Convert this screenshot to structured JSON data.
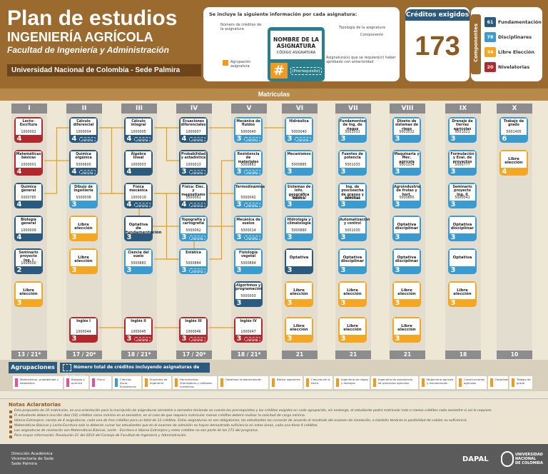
{
  "header": {
    "title": "Plan de estudios",
    "career": "INGENIERÍA AGRÍCOLA",
    "faculty": "Facultad de Ingeniería y Administración",
    "university": "Universidad Nacional de Colombia - Sede Palmira"
  },
  "legend": {
    "title": "Se incluye la siguiente información por cada asignatura:",
    "left_label_1": "Número de créditos de la asignatura",
    "card_name": "NOMBRE DE LA ASIGNATURA",
    "card_code": "CÓDIGO ASIGNATURA",
    "hash": "#",
    "prereq": "(Prerrequisito)",
    "right_label_1": "Tipología de la asignatura",
    "right_label_2": "Componente",
    "right_label_3": "Asignatura(s) que se requiere(n) haber aprobado con anterioridad",
    "agrupacion_label": "Agrupación asignatura"
  },
  "credits": {
    "title": "Créditos exigidos",
    "total": "173"
  },
  "components": {
    "label": "Componentes",
    "items": [
      {
        "num": "61",
        "label": "Fundamentación",
        "color": "#2a5a7e"
      },
      {
        "num": "78",
        "label": "Disciplinares",
        "color": "#3a9bd0"
      },
      {
        "num": "34",
        "label": "Libre Elección",
        "color": "#f5a623"
      },
      {
        "num": "20",
        "label": "Nivelatorias",
        "color": "#b3282d"
      }
    ]
  },
  "matriculas_title": "Matrículas",
  "semesters": [
    {
      "roman": "I",
      "credits": "13 / 21*"
    },
    {
      "roman": "II",
      "credits": "17 / 20*"
    },
    {
      "roman": "III",
      "credits": "18 / 21*"
    },
    {
      "roman": "IV",
      "credits": "17 / 20*"
    },
    {
      "roman": "V",
      "credits": "18 / 21*"
    },
    {
      "roman": "VI",
      "credits": "21"
    },
    {
      "roman": "VII",
      "credits": "21"
    },
    {
      "roman": "VIII",
      "credits": "21"
    },
    {
      "roman": "IX",
      "credits": "18"
    },
    {
      "roman": "X",
      "credits": "10"
    }
  ],
  "courses": [
    {
      "sem": 0,
      "row": 0,
      "name": "Lecto-Escritura",
      "code": "1000002",
      "cr": "4",
      "color": "#b3282d",
      "prereq": ""
    },
    {
      "sem": 0,
      "row": 1,
      "name": "Matemáticas básicas",
      "code": "1000001",
      "cr": "4",
      "color": "#b3282d",
      "prereq": ""
    },
    {
      "sem": 0,
      "row": 2,
      "name": "Química general",
      "code": "5000785",
      "cr": "4",
      "color": "#2a5a7e",
      "prereq": ""
    },
    {
      "sem": 0,
      "row": 3,
      "name": "Biología general",
      "code": "1000009",
      "cr": "4",
      "color": "#2a5a7e",
      "prereq": ""
    },
    {
      "sem": 0,
      "row": 4,
      "name": "Seminario proyecto Ing. I",
      "code": "1000000",
      "cr": "2",
      "color": "#2a5a7e",
      "prereq": ""
    },
    {
      "sem": 0,
      "row": 5,
      "name": "Libre elección",
      "code": "",
      "cr": "3",
      "color": "#f5a623",
      "prereq": "",
      "elec": true
    },
    {
      "sem": 1,
      "row": 0,
      "name": "Cálculo diferencial",
      "code": "1000004",
      "cr": "4",
      "color": "#2a5a7e",
      "prereq": "1000001"
    },
    {
      "sem": 1,
      "row": 1,
      "name": "Química orgánica",
      "code": "5000600",
      "cr": "4",
      "color": "#2a5a7e",
      "prereq": "5000785"
    },
    {
      "sem": 1,
      "row": 2,
      "name": "Dibujo de ingeniería",
      "code": "5000038",
      "cr": "3",
      "color": "#3a9bd0",
      "prereq": ""
    },
    {
      "sem": 1,
      "row": 3,
      "name": "Libre elección",
      "code": "",
      "cr": "3",
      "color": "#f5a623",
      "prereq": "",
      "elec": true
    },
    {
      "sem": 1,
      "row": 4,
      "name": "Libre elección",
      "code": "",
      "cr": "3",
      "color": "#f5a623",
      "prereq": "",
      "elec": true
    },
    {
      "sem": 1,
      "row": 6,
      "name": "Inglés I",
      "code": "1000044",
      "cr": "3",
      "color": "#b3282d",
      "prereq": ""
    },
    {
      "sem": 2,
      "row": 0,
      "name": "Cálculo integral",
      "code": "1000005",
      "cr": "4",
      "color": "#2a5a7e",
      "prereq": "1000004"
    },
    {
      "sem": 2,
      "row": 1,
      "name": "Álgebra lineal",
      "code": "1000003",
      "cr": "4",
      "color": "#2a5a7e",
      "prereq": ""
    },
    {
      "sem": 2,
      "row": 2,
      "name": "Física mecánica",
      "code": "1000019",
      "cr": "4",
      "color": "#2a5a7e",
      "prereq": "1000004"
    },
    {
      "sem": 2,
      "row": 3,
      "name": "Optativa de fundamentación",
      "code": "",
      "cr": "3",
      "color": "#2a5a7e",
      "prereq": "",
      "elec": true
    },
    {
      "sem": 2,
      "row": 4,
      "name": "Ciencia del suelo",
      "code": "5000883",
      "cr": "3",
      "color": "#3a9bd0",
      "prereq": ""
    },
    {
      "sem": 2,
      "row": 6,
      "name": "Inglés II",
      "code": "1000045",
      "cr": "3",
      "color": "#b3282d",
      "prereq": "1000044"
    },
    {
      "sem": 3,
      "row": 0,
      "name": "Ecuaciones diferenciales",
      "code": "1000007",
      "cr": "4",
      "color": "#2a5a7e",
      "prereq": "1000005"
    },
    {
      "sem": 3,
      "row": 1,
      "name": "Probabilidad y estadística",
      "code": "1000013",
      "cr": "3",
      "color": "#2a5a7e",
      "prereq": "1000005"
    },
    {
      "sem": 3,
      "row": 2,
      "name": "Física: Elec. y magnetismo",
      "code": "5000061",
      "cr": "4",
      "color": "#2a5a7e",
      "prereq": "1000019"
    },
    {
      "sem": 3,
      "row": 3,
      "name": "Topografía y cartografía",
      "code": "5000062",
      "cr": "3",
      "color": "#3a9bd0",
      "prereq": "5000038"
    },
    {
      "sem": 3,
      "row": 4,
      "name": "Estática",
      "code": "5000884",
      "cr": "3",
      "color": "#3a9bd0",
      "prereq": "1000019"
    },
    {
      "sem": 3,
      "row": 6,
      "name": "Inglés III",
      "code": "1000046",
      "cr": "3",
      "color": "#b3282d",
      "prereq": "1000045"
    },
    {
      "sem": 4,
      "row": 0,
      "name": "Mecánica de fluidos",
      "code": "5000040",
      "cr": "3",
      "color": "#3a9bd0",
      "prereq": "1000007"
    },
    {
      "sem": 4,
      "row": 1,
      "name": "Resistencia de materiales",
      "code": "5000881",
      "cr": "3",
      "color": "#3a9bd0",
      "prereq": "5000884"
    },
    {
      "sem": 4,
      "row": 2,
      "name": "Termodinámica",
      "code": "5000042",
      "cr": "3",
      "color": "#3a9bd0",
      "prereq": "5000061"
    },
    {
      "sem": 4,
      "row": 3,
      "name": "Mecánica de suelos",
      "code": "5000014",
      "cr": "3",
      "color": "#3a9bd0",
      "prereq": "5000883"
    },
    {
      "sem": 4,
      "row": 4,
      "name": "Fisiología vegetal",
      "code": "5000884",
      "cr": "3",
      "color": "#3a9bd0",
      "prereq": ""
    },
    {
      "sem": 4,
      "row": 5,
      "name": "Algoritmos y programación",
      "code": "5000003",
      "cr": "3",
      "color": "#2a5a7e",
      "prereq": ""
    },
    {
      "sem": 4,
      "row": 6,
      "name": "Inglés IV",
      "code": "1000047",
      "cr": "3",
      "color": "#b3282d",
      "prereq": "1000046"
    },
    {
      "sem": 5,
      "row": 0,
      "name": "Hidráulica",
      "code": "5000040",
      "cr": "3",
      "color": "#3a9bd0",
      "prereq": "5000040"
    },
    {
      "sem": 5,
      "row": 1,
      "name": "Mecanismos",
      "code": "5000885",
      "cr": "3",
      "color": "#3a9bd0",
      "prereq": ""
    },
    {
      "sem": 5,
      "row": 2,
      "name": "Sistemas de info. geográfica básica",
      "code": "5000033",
      "cr": "3",
      "color": "#3a9bd0",
      "prereq": ""
    },
    {
      "sem": 5,
      "row": 3,
      "name": "Hidrología y climatología",
      "code": "5000880",
      "cr": "3",
      "color": "#3a9bd0",
      "prereq": ""
    },
    {
      "sem": 5,
      "row": 4,
      "name": "Optativa",
      "code": "",
      "cr": "3",
      "color": "#2a5a7e",
      "prereq": "",
      "elec": true
    },
    {
      "sem": 5,
      "row": 5,
      "name": "Libre elección",
      "code": "",
      "cr": "3",
      "color": "#f5a623",
      "prereq": "",
      "elec": true
    },
    {
      "sem": 5,
      "row": 6,
      "name": "Libre elección",
      "code": "",
      "cr": "3",
      "color": "#f5a623",
      "prereq": "",
      "elec": true
    },
    {
      "sem": 6,
      "row": 0,
      "name": "Fundamentos de Ing. de riegos",
      "code": "5001031",
      "cr": "3",
      "color": "#3a9bd0",
      "prereq": ""
    },
    {
      "sem": 6,
      "row": 1,
      "name": "Fuentes de potencia",
      "code": "5001033",
      "cr": "3",
      "color": "#3a9bd0",
      "prereq": ""
    },
    {
      "sem": 6,
      "row": 2,
      "name": "Ing. de poscosecha de granos y semillas",
      "code": "5000013",
      "cr": "3",
      "color": "#3a9bd0",
      "prereq": ""
    },
    {
      "sem": 6,
      "row": 3,
      "name": "Automatización y control",
      "code": "5001030",
      "cr": "3",
      "color": "#3a9bd0",
      "prereq": ""
    },
    {
      "sem": 6,
      "row": 4,
      "name": "Optativa disciplinar",
      "code": "",
      "cr": "3",
      "color": "#3a9bd0",
      "prereq": "",
      "elec": true
    },
    {
      "sem": 6,
      "row": 5,
      "name": "Libre elección",
      "code": "",
      "cr": "3",
      "color": "#f5a623",
      "prereq": "",
      "elec": true
    },
    {
      "sem": 6,
      "row": 6,
      "name": "Libre elección",
      "code": "",
      "cr": "3",
      "color": "#f5a623",
      "prereq": "",
      "elec": true
    },
    {
      "sem": 7,
      "row": 0,
      "name": "Diseño de sistemas de riego",
      "code": "5001032",
      "cr": "3",
      "color": "#3a9bd0",
      "prereq": ""
    },
    {
      "sem": 7,
      "row": 1,
      "name": "Maquinaria y Mec. agrícola",
      "code": "5001034",
      "cr": "3",
      "color": "#3a9bd0",
      "prereq": ""
    },
    {
      "sem": 7,
      "row": 2,
      "name": "Agroindustria de frutas y hort.",
      "code": "5000865",
      "cr": "3",
      "color": "#3a9bd0",
      "prereq": ""
    },
    {
      "sem": 7,
      "row": 3,
      "name": "Optativa disciplinar",
      "code": "",
      "cr": "3",
      "color": "#3a9bd0",
      "prereq": "",
      "elec": true
    },
    {
      "sem": 7,
      "row": 4,
      "name": "Optativa disciplinar",
      "code": "",
      "cr": "3",
      "color": "#3a9bd0",
      "prereq": "",
      "elec": true
    },
    {
      "sem": 7,
      "row": 5,
      "name": "Libre elección",
      "code": "",
      "cr": "3",
      "color": "#f5a623",
      "prereq": "",
      "elec": true
    },
    {
      "sem": 7,
      "row": 6,
      "name": "Libre elección",
      "code": "",
      "cr": "3",
      "color": "#f5a623",
      "prereq": "",
      "elec": true
    },
    {
      "sem": 8,
      "row": 0,
      "name": "Drenaje de tierras agrícolas",
      "code": "5001021",
      "cr": "3",
      "color": "#3a9bd0",
      "prereq": ""
    },
    {
      "sem": 8,
      "row": 1,
      "name": "Formulación y Eval. de proyectos",
      "code": "5000777",
      "cr": "3",
      "color": "#3a9bd0",
      "prereq": ""
    },
    {
      "sem": 8,
      "row": 2,
      "name": "Seminario proyecto Ing. II",
      "code": "5000041",
      "cr": "3",
      "color": "#3a9bd0",
      "prereq": ""
    },
    {
      "sem": 8,
      "row": 3,
      "name": "Optativa disciplinar",
      "code": "",
      "cr": "3",
      "color": "#3a9bd0",
      "prereq": "",
      "elec": true
    },
    {
      "sem": 8,
      "row": 4,
      "name": "Optativa",
      "code": "",
      "cr": "3",
      "color": "#3a9bd0",
      "prereq": "",
      "elec": true
    },
    {
      "sem": 8,
      "row": 5,
      "name": "Libre elección",
      "code": "",
      "cr": "3",
      "color": "#f5a623",
      "prereq": "",
      "elec": true
    },
    {
      "sem": 9,
      "row": 0,
      "name": "Trabajo de grado",
      "code": "5001405",
      "cr": "6",
      "color": "#3a9bd0",
      "prereq": ""
    },
    {
      "sem": 9,
      "row": 1,
      "name": "Libre elección",
      "code": "",
      "cr": "4",
      "color": "#f5a623",
      "prereq": "",
      "elec": true
    }
  ],
  "agrupaciones": {
    "title": "Agrupaciones",
    "note": "Número total de créditos incluyendo asignaturas de nivelación",
    "items": [
      {
        "label": "Matemáticas, probabilidad y estadística",
        "color": "#e84ea0"
      },
      {
        "label": "Biología y química",
        "color": "#e84ea0"
      },
      {
        "label": "Física",
        "color": "#e84ea0"
      },
      {
        "label": "Ciencias Socio-Económicas",
        "color": "#3a9bd0"
      },
      {
        "label": "Proyectos de ingeniería",
        "color": "#f39a1e"
      },
      {
        "label": "Herramientas informáticas y métodos numéricos",
        "color": "#f39a1e"
      },
      {
        "label": "Optativas fundamentación",
        "color": "#f39a1e"
      },
      {
        "label": "Básica ingeniería",
        "color": "#f39a1e"
      },
      {
        "label": "Ciencias de la tierra",
        "color": "#f39a1e"
      },
      {
        "label": "Ingeniería de riegos y drenajes",
        "color": "#f39a1e"
      },
      {
        "label": "Ingeniería de poscosecha de productos agrícolas",
        "color": "#f39a1e"
      },
      {
        "label": "Maquinaria agrícola y mecanización",
        "color": "#f39a1e"
      },
      {
        "label": "Construcciones agrícolas",
        "color": "#f39a1e"
      },
      {
        "label": "Optativas",
        "color": "#f39a1e"
      },
      {
        "label": "Trabajo de grado",
        "color": "#f39a1e"
      }
    ]
  },
  "notes": {
    "title": "Notas Aclaratorias",
    "items": [
      "Esta propuesta de 10 matrículas, es una orientación para la inscripción de asignaturas semestre a semestre teniendo en cuenta los prerrequisitos y los créditos exigidos en cada agrupación, sin embargo, el estudiante podrá matricular más o menos créditos cada semestre si así lo requiere.",
      "El estudiante deberá inscribir diez (10) créditos como mínimo en el semestre, en el caso de que requiera matricular menos créditos deberá realizar la solicitud de carga mínima.",
      "Idioma Extranjero: consta de 4 asignaturas, cada una de tres créditos para un total de 12 créditos. Estas asignaturas no son obligatorias, los estudiantes las cursarán de acuerdo al resultado del examen de nivelación, o también tendrán la posibilidad de validar su suficiencia.",
      "Matemáticas Básicas y Lecto-Escritura solo la deberán cursar los estudiantes que en el examen de admisión no hayan demostrado suficiencia en estas áreas, cada una tiene 4 créditos.",
      "Las asignaturas de nivelación son Matemáticas Básicas, Lecto - Escritura e Idioma Extranjero y estos créditos no son parte de los 173 del programa.",
      "Para mayor información: Resolución 21 del 2010 del Consejo de Facultad de Ingeniería y Administración."
    ]
  },
  "footer": {
    "dir_line1": "Dirección Académica",
    "dir_line2": "Vicerrectoría de Sede",
    "dir_line3": "Sede Palmira",
    "dapal": "DAPAL",
    "unal_line1": "UNIVERSIDAD",
    "unal_line2": "NACIONAL",
    "unal_line3": "DE COLOMBIA"
  }
}
